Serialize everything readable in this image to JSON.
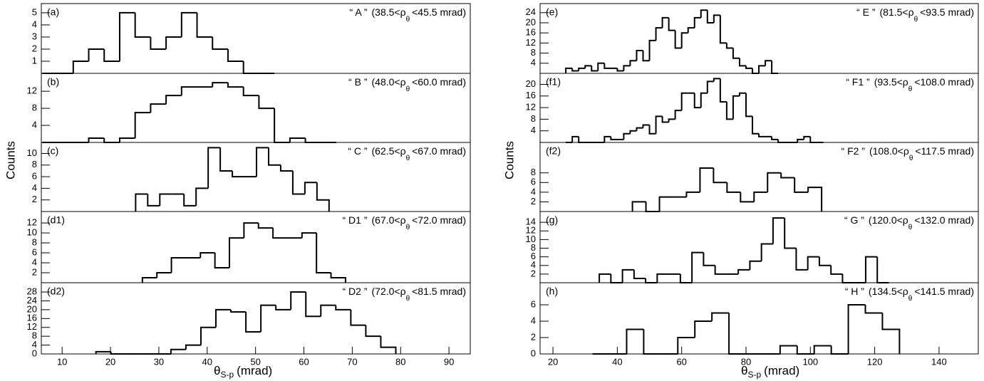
{
  "chart_data": [
    {
      "type": "histogram",
      "ylabel": "Counts",
      "xlabel": "θ",
      "xlabel_sub": "S-p",
      "xlabel_unit": "(mrad)",
      "xlim": [
        5.7,
        94.4
      ],
      "xticks": [
        10,
        20,
        30,
        40,
        50,
        60,
        70,
        80,
        90
      ],
      "panels": [
        {
          "label": "(a)",
          "tag": "“ A ”",
          "range_left": "(38.5<ρ",
          "range_sub": "θ",
          "range_right": "<45.5 mrad)",
          "bins": [
            5.9,
            9.1,
            12.3,
            15.5,
            18.7,
            21.9,
            25.1,
            28.3,
            31.5,
            34.7,
            37.9,
            41.1,
            44.3,
            47.5,
            50.7,
            53.9
          ],
          "counts": [
            0,
            0,
            1,
            2,
            1,
            5,
            3,
            2,
            3,
            5,
            3,
            2,
            1,
            0,
            0
          ],
          "ylim": [
            0,
            5.76
          ],
          "yticks": [
            1,
            2,
            3,
            4,
            5
          ]
        },
        {
          "label": "(b)",
          "tag": "“ B ”",
          "range_left": "(48.0<ρ",
          "range_sub": "θ",
          "range_right": "<60.0 mrad)",
          "bins": [
            5.9,
            9.1,
            12.3,
            15.5,
            18.7,
            21.9,
            25.1,
            28.3,
            31.5,
            34.7,
            37.9,
            41.1,
            44.3,
            47.5,
            50.7,
            53.9,
            57.1,
            60.3,
            63.5,
            66.7
          ],
          "counts": [
            0,
            0,
            0,
            1,
            0,
            1,
            7,
            9,
            11,
            13,
            13,
            14,
            13,
            11,
            8,
            0,
            1,
            0,
            0
          ],
          "ylim": [
            0,
            16.2
          ],
          "yticks": [
            4,
            8,
            12
          ]
        },
        {
          "label": "(c)",
          "tag": "“ C ”",
          "range_left": "(62.5<ρ",
          "range_sub": "θ",
          "range_right": "<67.0 mrad)",
          "bins": [
            25.2,
            27.7,
            30.2,
            32.7,
            35.2,
            37.7,
            40.2,
            42.7,
            45.2,
            47.7,
            50.2,
            52.7,
            55.2,
            57.7,
            60.2,
            62.7,
            65.2
          ],
          "counts": [
            3,
            1,
            3,
            3,
            1,
            4,
            11,
            7,
            6,
            6,
            11,
            8,
            7,
            3,
            5,
            2
          ],
          "ylim": [
            0,
            11.9
          ],
          "yticks": [
            2,
            4,
            6,
            8,
            10
          ]
        },
        {
          "label": "(d1)",
          "tag": "“ D1 ”",
          "range_left": "(67.0<ρ",
          "range_sub": "θ",
          "range_right": "<72.0 mrad)",
          "bins": [
            26.6,
            29.6,
            32.6,
            35.6,
            38.6,
            41.6,
            44.6,
            47.6,
            50.6,
            53.6,
            56.6,
            59.6,
            62.6,
            65.6,
            68.6
          ],
          "counts": [
            1,
            2,
            5,
            5,
            6,
            3,
            9,
            12,
            11,
            9,
            9,
            10,
            2,
            1
          ],
          "ylim": [
            0,
            14.3
          ],
          "yticks": [
            2,
            4,
            6,
            8,
            10,
            12
          ]
        },
        {
          "label": "(d2)",
          "tag": "“ D2 ”",
          "range_left": "(72.0<ρ",
          "range_sub": "θ",
          "range_right": "<81.5 mrad)",
          "bins": [
            17.0,
            20.1,
            23.2,
            26.3,
            29.4,
            32.5,
            35.6,
            38.7,
            41.8,
            44.9,
            48.0,
            51.1,
            54.2,
            57.3,
            60.4,
            63.5,
            66.6,
            69.7,
            72.8,
            75.9,
            79.0
          ],
          "counts": [
            1,
            0,
            0,
            0,
            0,
            2,
            4,
            12,
            20,
            19,
            10,
            22,
            20,
            28,
            17,
            22,
            20,
            13,
            8,
            3
          ],
          "ylim": [
            0,
            32.2
          ],
          "yticks": [
            0,
            4,
            8,
            12,
            16,
            20,
            24,
            28
          ]
        }
      ]
    },
    {
      "type": "histogram",
      "ylabel": "Counts",
      "xlabel": "θ",
      "xlabel_sub": "S-p",
      "xlabel_unit": "(mrad)",
      "xlim": [
        16.0,
        152.2
      ],
      "xticks": [
        20,
        40,
        60,
        80,
        100,
        120,
        140
      ],
      "panels": [
        {
          "label": "(e)",
          "tag": "“ E ”",
          "range_left": "(81.5<ρ",
          "range_sub": "θ",
          "range_right": "<93.5 mrad)",
          "bins": [
            24,
            26,
            28,
            30,
            32,
            34,
            36,
            38,
            40,
            42,
            44,
            46,
            48,
            50,
            52,
            54,
            56,
            58,
            60,
            62,
            64,
            66,
            68,
            70,
            72,
            74,
            76,
            78,
            80,
            82,
            84,
            86,
            88,
            90
          ],
          "counts": [
            2,
            1,
            2,
            3,
            1,
            4,
            2,
            2,
            1,
            3,
            5,
            9,
            5,
            13,
            18,
            22,
            17,
            10,
            16,
            18,
            22,
            25,
            20,
            23,
            12,
            10,
            6,
            3,
            2,
            0,
            3,
            5,
            0
          ],
          "ylim": [
            0,
            27.6
          ],
          "yticks": [
            4,
            8,
            12,
            16,
            20,
            24
          ]
        },
        {
          "label": "(f1)",
          "tag": "“ F1 ”",
          "range_left": "(93.5<ρ",
          "range_sub": "θ",
          "range_right": "<108.0 mrad)",
          "bins": [
            24,
            26,
            28,
            30,
            32,
            34,
            36,
            38,
            40,
            42,
            44,
            46,
            48,
            50,
            52,
            54,
            56,
            58,
            60,
            62,
            64,
            66,
            68,
            70,
            72,
            74,
            76,
            78,
            80,
            82,
            84,
            86,
            88,
            90,
            92,
            94,
            96,
            98,
            100,
            102,
            104
          ],
          "counts": [
            0,
            2,
            0,
            0,
            0,
            0,
            2,
            1,
            1,
            3,
            4,
            5,
            6,
            3,
            9,
            7,
            8,
            11,
            17,
            17,
            12,
            17,
            21,
            22,
            14,
            8,
            16,
            17,
            9,
            3,
            2,
            2,
            1,
            0,
            0,
            0,
            1,
            2,
            0,
            0
          ],
          "ylim": [
            0,
            23.8
          ],
          "yticks": [
            4,
            8,
            12,
            16,
            20
          ]
        },
        {
          "label": "(f2)",
          "tag": "“ F2 ”",
          "range_left": "(108.0<ρ",
          "range_sub": "θ",
          "range_right": "<117.5 mrad)",
          "bins": [
            44.7,
            48.9,
            53.1,
            57.3,
            61.5,
            65.7,
            69.9,
            74.1,
            78.3,
            82.5,
            86.7,
            90.9,
            95.1,
            99.3,
            103.5
          ],
          "counts": [
            2,
            0,
            3,
            3,
            4,
            9,
            6,
            4,
            2,
            4,
            8,
            7,
            4,
            5
          ],
          "ylim": [
            0,
            14.3
          ],
          "yticks": [
            2,
            4,
            6,
            8
          ]
        },
        {
          "label": "(g)",
          "tag": "“ G ”",
          "range_left": "(120.0<ρ",
          "range_sub": "θ",
          "range_right": "<132.0 mrad)",
          "bins": [
            34.4,
            38.0,
            41.6,
            45.2,
            48.8,
            52.4,
            56.0,
            59.6,
            63.2,
            66.8,
            70.4,
            74.0,
            77.6,
            81.2,
            84.8,
            88.4,
            92.0,
            95.6,
            99.2,
            102.8,
            106.4,
            110.0,
            113.6,
            117.2,
            120.8,
            124.4
          ],
          "counts": [
            2,
            0,
            3,
            1,
            0,
            2,
            2,
            0,
            7,
            4,
            2,
            2,
            3,
            5,
            9,
            15,
            8,
            3,
            6,
            4,
            2,
            0,
            0,
            6,
            0
          ],
          "ylim": [
            0,
            16.5
          ],
          "yticks": [
            2,
            4,
            6,
            8,
            10,
            12,
            14
          ]
        },
        {
          "label": "(h)",
          "tag": "“ H ”",
          "range_left": "(134.5<ρ",
          "range_sub": "θ",
          "range_right": "<141.5 mrad)",
          "bins": [
            32.3,
            37.6,
            42.9,
            48.2,
            53.5,
            58.8,
            64.1,
            69.4,
            74.7,
            80.0,
            85.3,
            90.6,
            95.9,
            101.2,
            106.5,
            111.8,
            117.1,
            122.4,
            127.7
          ],
          "counts": [
            0,
            0,
            3,
            0,
            0,
            2,
            4,
            5,
            0,
            0,
            0,
            1,
            0,
            1,
            0,
            6,
            5,
            3
          ],
          "ylim": [
            0,
            8.7
          ],
          "yticks": [
            0,
            2,
            4,
            6
          ]
        }
      ]
    }
  ]
}
